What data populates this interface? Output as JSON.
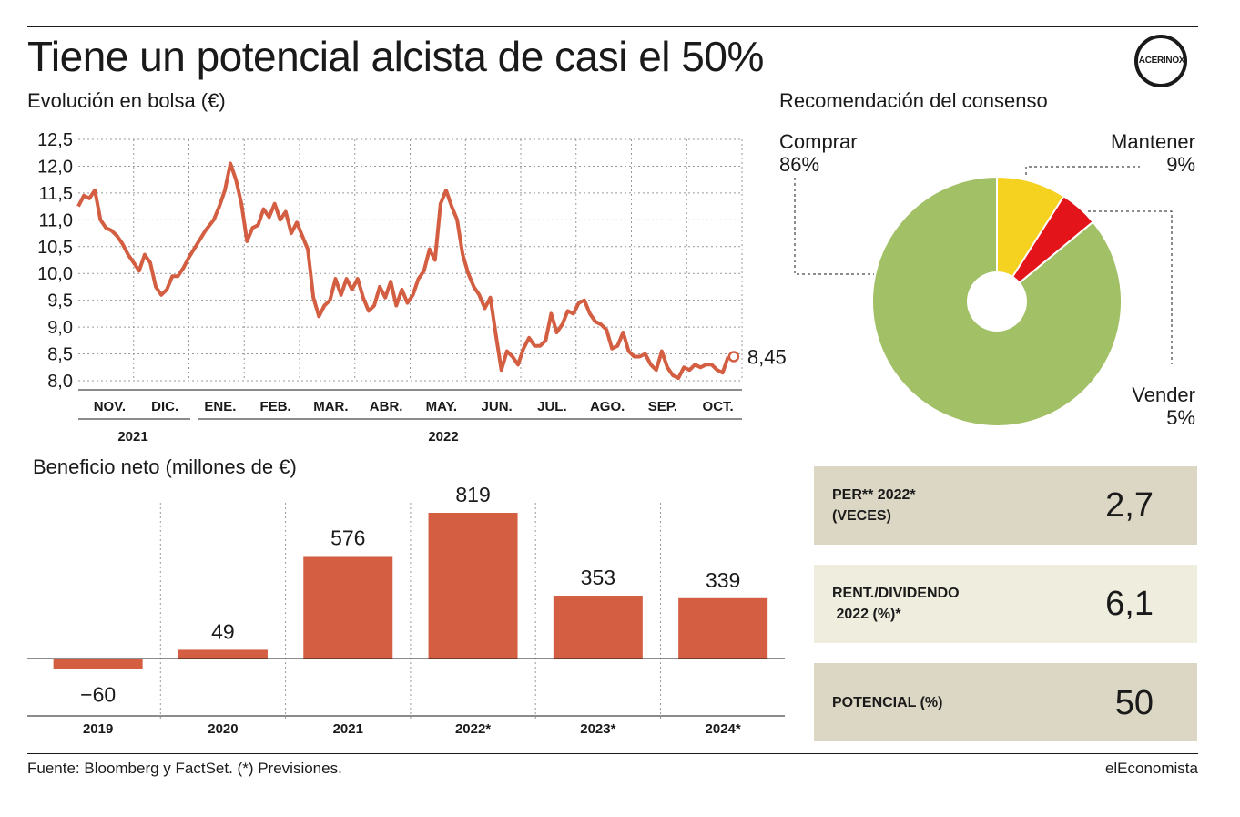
{
  "title": "Tiene un potencial alcista de casi el 50%",
  "logo": {
    "text": "ACERINOX"
  },
  "line_section": {
    "title": "Evolución en bolsa (€)",
    "last_value_label": "8,45"
  },
  "pie_section": {
    "title": "Recomendación del consenso",
    "labels": {
      "comprar": {
        "name": "Comprar",
        "pct": "86%"
      },
      "mantener": {
        "name": "Mantener",
        "pct": "9%"
      },
      "vender": {
        "name": "Vender",
        "pct": "5%"
      }
    }
  },
  "bar_section": {
    "title": "Beneficio neto (millones de €)"
  },
  "stats": [
    {
      "label": "PER** 2022*\n(VECES)",
      "value": "2,7"
    },
    {
      "label": "RENT./DIVIDENDO\n 2022 (%)*",
      "value": "6,1"
    },
    {
      "label": "POTENCIAL (%)",
      "value": "50"
    }
  ],
  "colors": {
    "accent": "#d35e42",
    "line": "#d35e42",
    "grid": "#999999",
    "pie_buy": "#a2c066",
    "pie_hold": "#f5d21f",
    "pie_sell": "#e3151a",
    "stat_box_1": "#dcd7c4",
    "stat_box_2": "#efeddd",
    "stat_box_3": "#dcd7c4"
  },
  "footer": {
    "source": "Fuente: Bloomberg y FactSet. (*) Previsiones.",
    "brand": "elEconomista"
  },
  "chart_data": [
    {
      "type": "line",
      "title": "Evolución en bolsa (€)",
      "ylim": [
        8.0,
        12.5
      ],
      "yticks": [
        8.0,
        8.5,
        9.0,
        9.5,
        10.0,
        10.5,
        11.0,
        11.5,
        12.0,
        12.5
      ],
      "ytick_labels": [
        "8,0",
        "8,5",
        "9,0",
        "9,5",
        "10,0",
        "10,5",
        "11,0",
        "11,5",
        "12,0",
        "12,5"
      ],
      "month_labels": [
        "NOV.",
        "DIC.",
        "ENE.",
        "FEB.",
        "MAR.",
        "ABR.",
        "MAY.",
        "JUN.",
        "JUL.",
        "AGO.",
        "SEP.",
        "OCT."
      ],
      "year_labels": [
        "2021",
        "2022"
      ],
      "grid": true,
      "x_unit": "month (0 = 1 Nov 2021)",
      "series": [
        {
          "x": [
            0.0,
            0.1,
            0.2,
            0.3,
            0.4,
            0.5,
            0.6,
            0.7,
            0.8,
            0.9,
            1.0,
            1.1,
            1.2,
            1.3,
            1.4,
            1.5,
            1.6,
            1.7,
            1.8,
            1.9,
            2.0,
            2.15,
            2.3,
            2.45,
            2.55,
            2.65,
            2.75,
            2.85,
            2.95,
            3.05,
            3.15,
            3.25,
            3.35,
            3.45,
            3.55,
            3.65,
            3.75,
            3.85,
            3.95,
            4.05,
            4.15,
            4.25,
            4.35,
            4.45,
            4.55,
            4.65,
            4.75,
            4.85,
            4.95,
            5.05,
            5.15,
            5.25,
            5.35,
            5.45,
            5.55,
            5.65,
            5.75,
            5.85,
            5.95,
            6.05,
            6.15,
            6.25,
            6.35,
            6.45,
            6.55,
            6.65,
            6.75,
            6.85,
            6.95,
            7.05,
            7.15,
            7.25,
            7.35,
            7.45,
            7.55,
            7.65,
            7.75,
            7.85,
            7.95,
            8.05,
            8.15,
            8.25,
            8.35,
            8.45,
            8.55,
            8.65,
            8.75,
            8.85,
            8.95,
            9.05,
            9.15,
            9.25,
            9.35,
            9.45,
            9.55,
            9.65,
            9.75,
            9.85,
            9.95,
            10.05,
            10.15,
            10.25,
            10.35,
            10.45,
            10.55,
            10.65,
            10.75,
            10.85,
            10.95,
            11.05,
            11.15,
            11.25,
            11.35,
            11.45,
            11.55,
            11.65,
            11.75
          ],
          "y": [
            11.25,
            11.45,
            11.4,
            11.55,
            11.0,
            10.85,
            10.8,
            10.7,
            10.55,
            10.35,
            10.2,
            10.05,
            10.35,
            10.2,
            9.75,
            9.6,
            9.7,
            9.95,
            9.95,
            10.1,
            10.3,
            10.55,
            10.8,
            11.0,
            11.25,
            11.55,
            12.05,
            11.75,
            11.3,
            10.6,
            10.85,
            10.9,
            11.2,
            11.05,
            11.3,
            11.0,
            11.15,
            10.75,
            10.95,
            10.7,
            10.45,
            9.55,
            9.2,
            9.4,
            9.5,
            9.9,
            9.6,
            9.9,
            9.7,
            9.9,
            9.55,
            9.3,
            9.4,
            9.75,
            9.55,
            9.85,
            9.4,
            9.7,
            9.45,
            9.6,
            9.9,
            10.05,
            10.45,
            10.25,
            11.3,
            11.55,
            11.25,
            11.0,
            10.35,
            10.0,
            9.75,
            9.6,
            9.35,
            9.55,
            8.85,
            8.2,
            8.55,
            8.45,
            8.3,
            8.6,
            8.8,
            8.65,
            8.65,
            8.75,
            9.25,
            8.9,
            9.05,
            9.3,
            9.25,
            9.45,
            9.5,
            9.25,
            9.1,
            9.05,
            8.95,
            8.6,
            8.65,
            8.9,
            8.55,
            8.45,
            8.45,
            8.5,
            8.3,
            8.2,
            8.55,
            8.25,
            8.1,
            8.05,
            8.25,
            8.2,
            8.3,
            8.25,
            8.3,
            8.3,
            8.2,
            8.15,
            8.45
          ]
        }
      ],
      "last_value": 8.45
    },
    {
      "type": "pie",
      "title": "Recomendación del consenso",
      "categories": [
        "Comprar",
        "Mantener",
        "Vender"
      ],
      "values": [
        86,
        9,
        5
      ]
    },
    {
      "type": "bar",
      "title": "Beneficio neto (millones de €)",
      "categories": [
        "2019",
        "2020",
        "2021",
        "2022*",
        "2023*",
        "2024*"
      ],
      "values": [
        -60,
        49,
        576,
        819,
        353,
        339
      ],
      "value_labels": [
        "−60",
        "49",
        "576",
        "819",
        "353",
        "339"
      ],
      "ylim": [
        -60,
        819
      ]
    }
  ]
}
